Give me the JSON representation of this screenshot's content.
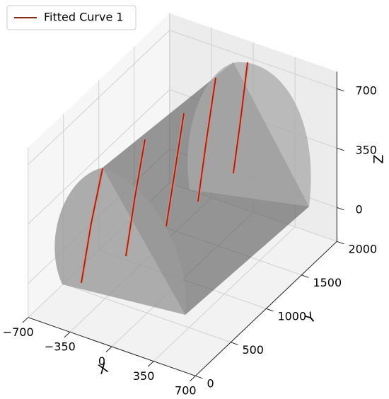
{
  "chart_data": {
    "type": "line3d",
    "xlabel": "X",
    "ylabel": "Y",
    "zlabel": "Z",
    "xlim": [
      -700,
      700
    ],
    "ylim": [
      0,
      2000
    ],
    "zlim": [
      -200,
      800
    ],
    "xticks": [
      {
        "value": -700,
        "label": "−700"
      },
      {
        "value": -350,
        "label": "−350"
      },
      0,
      350,
      700
    ],
    "yticks": [
      0,
      500,
      1000,
      1500,
      2000
    ],
    "zticks": [
      0,
      350,
      700
    ],
    "grid": true,
    "legend": "upper left",
    "series": [
      {
        "name": "Fitted Curve 1",
        "color": "#8b2a10",
        "x": [
          -432,
          -350,
          -254,
          null,
          -296,
          -220,
          -136,
          null,
          -195,
          -120,
          -47,
          null,
          -166,
          -95,
          -18,
          null,
          -107,
          -45,
          12
        ],
        "y": [
          300,
          300,
          300,
          null,
          700,
          700,
          700,
          null,
          1100,
          1100,
          1100,
          null,
          1500,
          1500,
          1500,
          null,
          1900,
          1900,
          1900
        ],
        "z": [
          -50,
          320,
          669,
          null,
          -17,
          350,
          710,
          null,
          25,
          380,
          728,
          null,
          20,
          400,
          785,
          null,
          42,
          380,
          725
        ]
      }
    ]
  }
}
